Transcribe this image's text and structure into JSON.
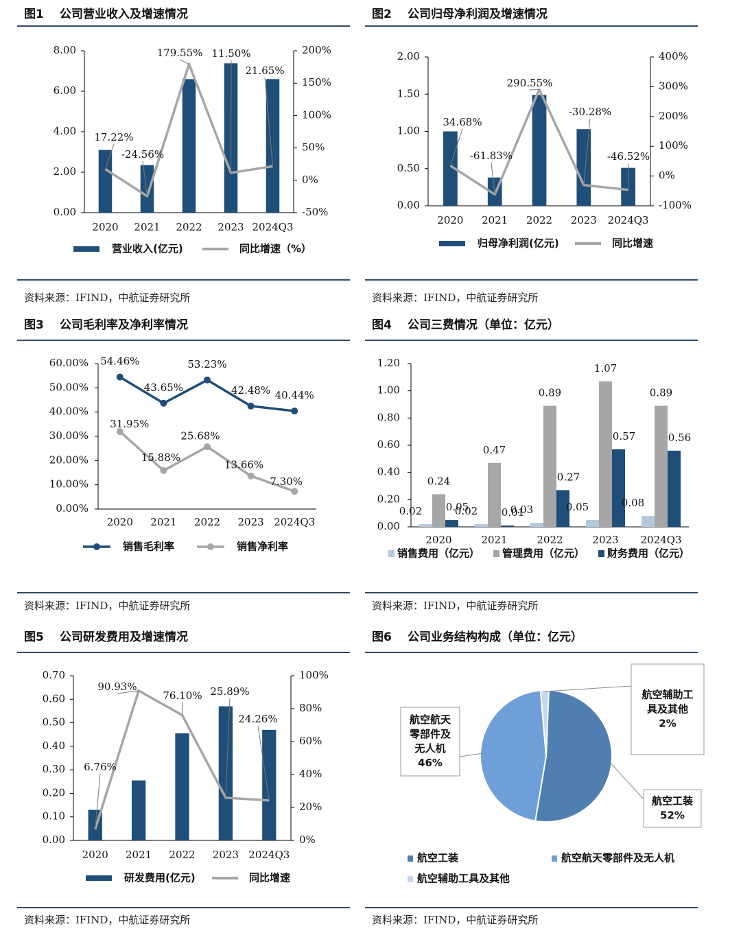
{
  "colors": {
    "navy": "#1f4e79",
    "gray": "#a6a6a6",
    "light": "#b4c7dc",
    "pie1": "#4f7fb0",
    "pie2": "#6f9fd8",
    "pie3": "#c5d7ef"
  },
  "panels": [
    {
      "num": "图1",
      "title": "公司营业收入及增速情况",
      "source": "资料来源：IFIND，中航证券研究所"
    },
    {
      "num": "图2",
      "title": "公司归母净利润及增速情况",
      "source": "资料来源：IFIND，中航证券研究所"
    },
    {
      "num": "图3",
      "title": "公司毛利率及净利率情况",
      "source": "资料来源：IFIND，中航证券研究所"
    },
    {
      "num": "图4",
      "title": "公司三费情况（单位：亿元）",
      "source": "资料来源：IFIND，中航证券研究所"
    },
    {
      "num": "图5",
      "title": "公司研发费用及增速情况",
      "source": "资料来源：IFIND，中航证券研究所"
    },
    {
      "num": "图6",
      "title": "公司业务结构构成（单位：亿元）",
      "source": "资料来源：IFIND，中航证券研究所"
    }
  ],
  "chart_data": [
    {
      "type": "bar+line",
      "categories": [
        "2020",
        "2021",
        "2022",
        "2023",
        "2024Q3"
      ],
      "series": [
        {
          "name": "营业收入(亿元)",
          "values": [
            3.1,
            2.35,
            6.6,
            7.38,
            6.6
          ]
        },
        {
          "name": "同比增速（%）",
          "values": [
            17.22,
            -24.56,
            179.55,
            11.5,
            21.65
          ]
        }
      ],
      "labels": [
        "17.22%",
        "-24.56%",
        "179.55%",
        "11.50%",
        "21.65%"
      ],
      "ylim": [
        0,
        8
      ],
      "yticks": [
        "0.00",
        "2.00",
        "4.00",
        "6.00",
        "8.00"
      ],
      "y2lim": [
        -50,
        200
      ],
      "y2ticks": [
        "-50%",
        "0%",
        "50%",
        "100%",
        "150%",
        "200%"
      ]
    },
    {
      "type": "bar+line",
      "categories": [
        "2020",
        "2021",
        "2022",
        "2023",
        "2024Q3"
      ],
      "series": [
        {
          "name": "归母净利润(亿元)",
          "values": [
            1.0,
            0.38,
            1.49,
            1.03,
            0.51
          ]
        },
        {
          "name": "同比增速",
          "values": [
            34.68,
            -61.83,
            290.55,
            -30.28,
            -46.52
          ]
        }
      ],
      "labels": [
        "34.68%",
        "-61.83%",
        "290.55%",
        "-30.28%",
        "-46.52%"
      ],
      "ylim": [
        0,
        2
      ],
      "yticks": [
        "0.00",
        "0.50",
        "1.00",
        "1.50",
        "2.00"
      ],
      "y2lim": [
        -100,
        400
      ],
      "y2ticks": [
        "-100%",
        "0%",
        "100%",
        "200%",
        "300%",
        "400%"
      ]
    },
    {
      "type": "line",
      "categories": [
        "2020",
        "2021",
        "2022",
        "2023",
        "2024Q3"
      ],
      "series": [
        {
          "name": "销售毛利率",
          "values": [
            54.46,
            43.65,
            53.23,
            42.48,
            40.44
          ],
          "labels": [
            "54.46%",
            "43.65%",
            "53.23%",
            "42.48%",
            "40.44%"
          ]
        },
        {
          "name": "销售净利率",
          "values": [
            31.95,
            15.88,
            25.68,
            13.66,
            7.3
          ],
          "labels": [
            "31.95%",
            "15.88%",
            "25.68%",
            "13.66%",
            "7.30%"
          ]
        }
      ],
      "ylim": [
        0,
        60
      ],
      "yticks": [
        "0.00%",
        "10.00%",
        "20.00%",
        "30.00%",
        "40.00%",
        "50.00%",
        "60.00%"
      ]
    },
    {
      "type": "bar",
      "categories": [
        "2020",
        "2021",
        "2022",
        "2023",
        "2024Q3"
      ],
      "series": [
        {
          "name": "销售费用（亿元）",
          "values": [
            0.02,
            0.02,
            0.03,
            0.05,
            0.08
          ],
          "labels": [
            "0.02",
            "0.02",
            "0.03",
            "0.05",
            "0.08"
          ]
        },
        {
          "name": "管理费用（亿元）",
          "values": [
            0.24,
            0.47,
            0.89,
            1.07,
            0.89
          ],
          "labels": [
            "0.24",
            "0.47",
            "0.89",
            "1.07",
            "0.89"
          ]
        },
        {
          "name": "财务费用（亿元）",
          "values": [
            0.05,
            0.01,
            0.27,
            0.57,
            0.56
          ],
          "labels": [
            "0.05",
            "0.01",
            "0.27",
            "0.57",
            "0.56"
          ]
        }
      ],
      "ylim": [
        0,
        1.2
      ],
      "yticks": [
        "0.00",
        "0.20",
        "0.40",
        "0.60",
        "0.80",
        "1.00",
        "1.20"
      ]
    },
    {
      "type": "bar+line",
      "categories": [
        "2020",
        "2021",
        "2022",
        "2023",
        "2024Q3"
      ],
      "series": [
        {
          "name": "研发费用(亿元)",
          "values": [
            0.13,
            0.255,
            0.455,
            0.57,
            0.47
          ]
        },
        {
          "name": "同比增速",
          "values": [
            6.76,
            90.93,
            76.1,
            25.89,
            24.26
          ]
        }
      ],
      "labels": [
        "6.76%",
        "90.93%",
        "76.10%",
        "25.89%",
        "24.26%"
      ],
      "ylim": [
        0,
        0.7
      ],
      "yticks": [
        "0.00",
        "0.10",
        "0.20",
        "0.30",
        "0.40",
        "0.50",
        "0.60",
        "0.70"
      ],
      "y2lim": [
        0,
        100
      ],
      "y2ticks": [
        "0%",
        "20%",
        "40%",
        "60%",
        "80%",
        "100%"
      ]
    },
    {
      "type": "pie",
      "slices": [
        {
          "name": "航空工装",
          "value": 52,
          "label": "航空工装\n52%"
        },
        {
          "name": "航空航天零部件及无人机",
          "value": 46,
          "label": "航空航天\n零部件及\n无人机\n46%"
        },
        {
          "name": "航空辅助工具及其他",
          "value": 2,
          "label": "航空辅助工\n具及其他\n2%"
        }
      ],
      "legend": [
        "航空工装",
        "航空航天零部件及无人机",
        "航空辅助工具及其他"
      ]
    }
  ]
}
